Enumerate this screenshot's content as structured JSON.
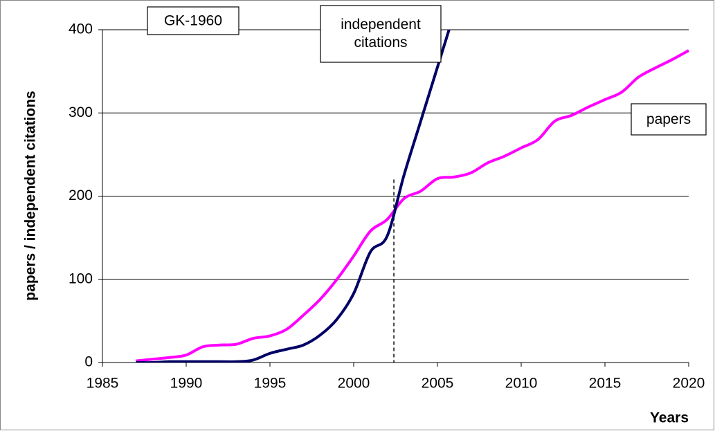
{
  "chart_data": {
    "type": "line",
    "y_label": "papers / independent citations",
    "x_label": "Years",
    "x": [
      1987,
      1988,
      1989,
      1990,
      1991,
      1992,
      1993,
      1994,
      1995,
      1996,
      1997,
      1998,
      1999,
      2000,
      2001,
      2002,
      2003,
      2004,
      2005,
      2006,
      2007,
      2008,
      2009,
      2010,
      2011,
      2012,
      2013,
      2014,
      2015,
      2016,
      2017,
      2018,
      2019,
      2020
    ],
    "series": [
      {
        "name": "papers",
        "color": "#ff00ff",
        "values": [
          2,
          4,
          6,
          9,
          19,
          21,
          22,
          29,
          32,
          40,
          57,
          76,
          100,
          128,
          158,
          172,
          197,
          206,
          221,
          223,
          228,
          240,
          248,
          258,
          268,
          290,
          297,
          307,
          316,
          325,
          343,
          354,
          364,
          375
        ]
      },
      {
        "name": "independent citations",
        "color": "#000066",
        "values": [
          0,
          0,
          1,
          1,
          1,
          1,
          1,
          3,
          11,
          16,
          21,
          33,
          52,
          83,
          133,
          152,
          225,
          290,
          355,
          420,
          null,
          null,
          null,
          null,
          null,
          null,
          null,
          null,
          null,
          null,
          null,
          null,
          null,
          null
        ]
      }
    ],
    "annotations": [
      "GK-1960"
    ],
    "reference_line": {
      "x": 2002.4,
      "ymax": 220
    },
    "xlim": [
      1985,
      2020
    ],
    "xticks": [
      1985,
      1990,
      1995,
      2000,
      2005,
      2010,
      2015,
      2020
    ],
    "ylim": [
      0,
      400
    ],
    "yticks": [
      0,
      100,
      200,
      300,
      400
    ],
    "grid": true
  }
}
